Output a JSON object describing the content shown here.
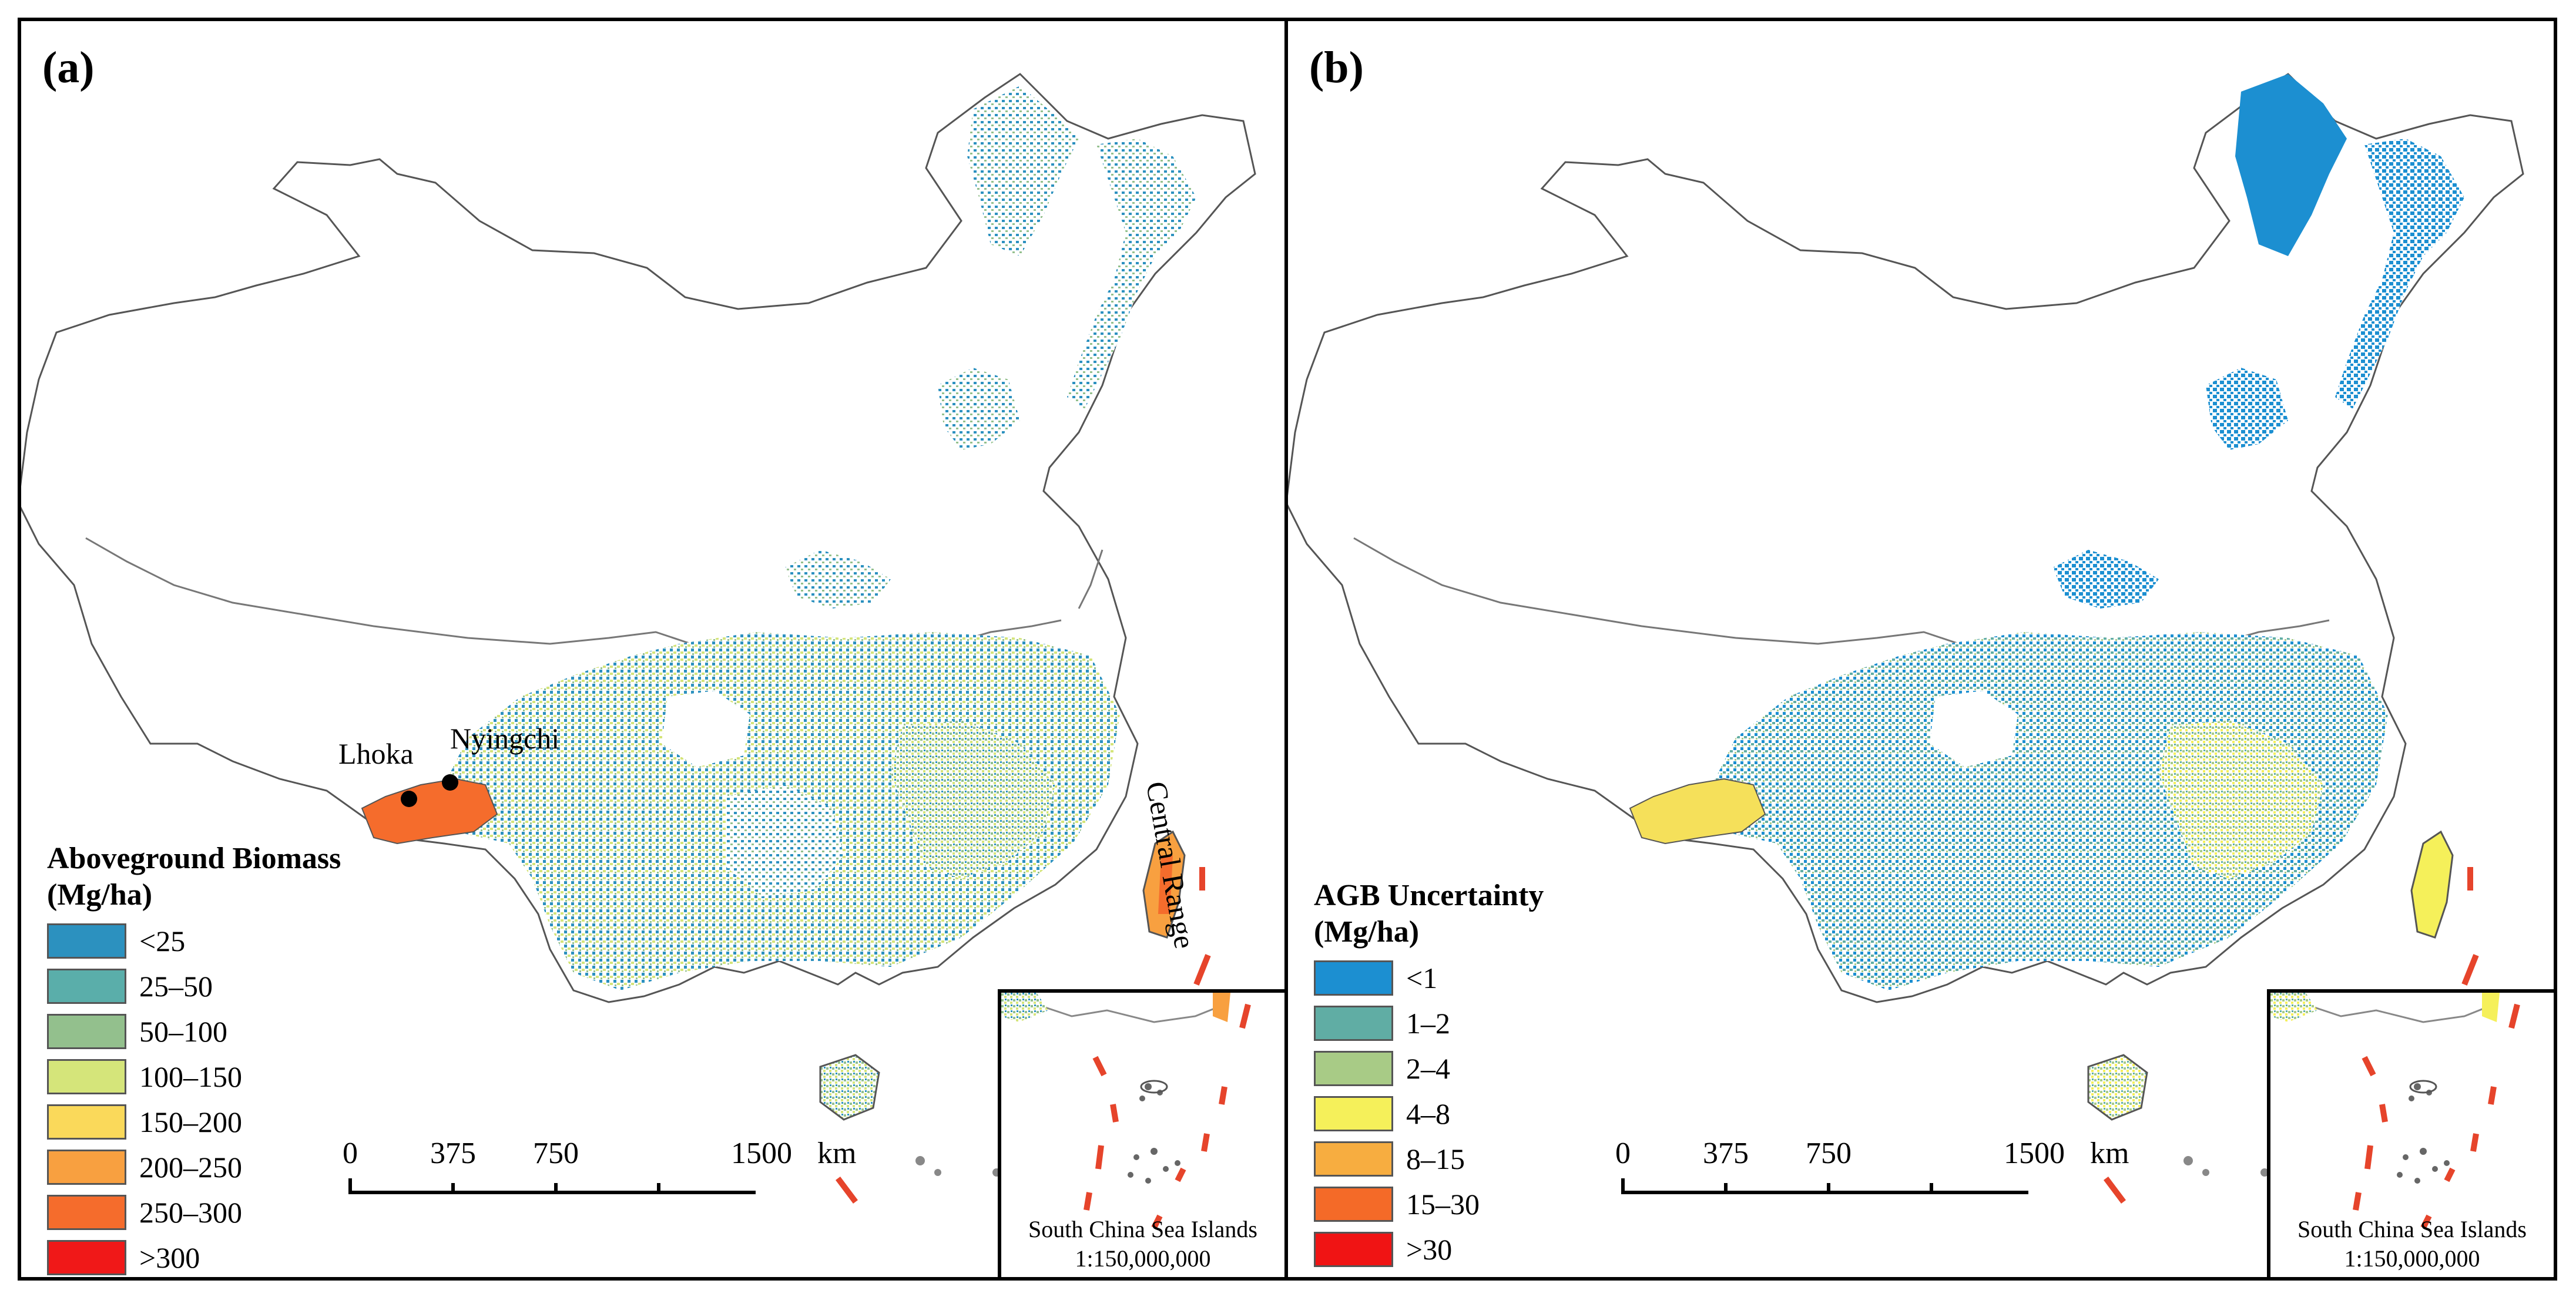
{
  "panels": {
    "a": {
      "label": "(a)",
      "legend_title": "Aboveground Biomass\n(Mg/ha)",
      "legend": [
        {
          "label": "<25",
          "color": "#2c91bf"
        },
        {
          "label": "25–50",
          "color": "#5aaeaa"
        },
        {
          "label": "50–100",
          "color": "#93c08d"
        },
        {
          "label": "100–150",
          "color": "#d5e57a"
        },
        {
          "label": "150–200",
          "color": "#fad95a"
        },
        {
          "label": "200–250",
          "color": "#f8a040"
        },
        {
          "label": "250–300",
          "color": "#f56c2c"
        },
        {
          "label": ">300",
          "color": "#f01818"
        }
      ],
      "places": {
        "lhoka": "Lhoka",
        "nyingchi": "Nyingchi",
        "central_range": "Central Range"
      }
    },
    "b": {
      "label": "(b)",
      "legend_title": "AGB Uncertainty\n(Mg/ha)",
      "legend": [
        {
          "label": "<1",
          "color": "#1c8fd1"
        },
        {
          "label": "1–2",
          "color": "#60ada4"
        },
        {
          "label": "2–4",
          "color": "#a8cb86"
        },
        {
          "label": "4–8",
          "color": "#f5f05a"
        },
        {
          "label": "8–15",
          "color": "#f7ad40"
        },
        {
          "label": "15–30",
          "color": "#f46a28"
        },
        {
          "label": ">30",
          "color": "#f01414"
        }
      ]
    }
  },
  "scalebar": {
    "ticks": [
      "0",
      "375",
      "750",
      "1500"
    ],
    "unit": "km"
  },
  "inset": {
    "title": "South China Sea Islands",
    "scale": "1:150,000,000"
  }
}
